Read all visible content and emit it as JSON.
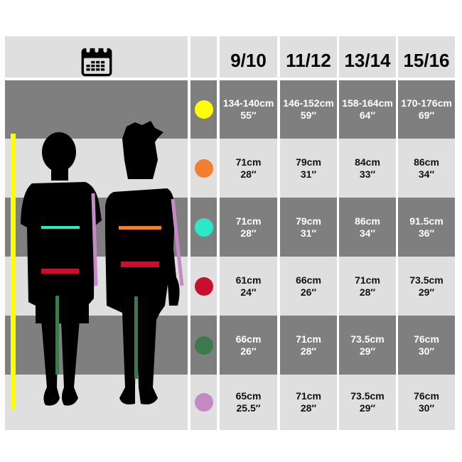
{
  "header": {
    "icon": "calendar-icon",
    "sizes": [
      "9/10",
      "11/12",
      "13/14",
      "15/16"
    ]
  },
  "chart_data": {
    "type": "table",
    "columns": [
      "9/10",
      "11/12",
      "13/14",
      "15/16"
    ],
    "rows": [
      {
        "color": "#ffff00",
        "cells": [
          [
            "134-140cm",
            "55″"
          ],
          [
            "146-152cm",
            "59″"
          ],
          [
            "158-164cm",
            "64″"
          ],
          [
            "170-176cm",
            "69″"
          ]
        ]
      },
      {
        "color": "#f28030",
        "cells": [
          [
            "71cm",
            "28″"
          ],
          [
            "79cm",
            "31″"
          ],
          [
            "84cm",
            "33″"
          ],
          [
            "86cm",
            "34″"
          ]
        ]
      },
      {
        "color": "#2de8c8",
        "cells": [
          [
            "71cm",
            "28″"
          ],
          [
            "79cm",
            "31″"
          ],
          [
            "86cm",
            "34″"
          ],
          [
            "91.5cm",
            "36″"
          ]
        ]
      },
      {
        "color": "#c8102e",
        "cells": [
          [
            "61cm",
            "24″"
          ],
          [
            "66cm",
            "26″"
          ],
          [
            "71cm",
            "28″"
          ],
          [
            "73.5cm",
            "29″"
          ]
        ]
      },
      {
        "color": "#3a7a4e",
        "cells": [
          [
            "66cm",
            "26″"
          ],
          [
            "71cm",
            "28″"
          ],
          [
            "73.5cm",
            "29″"
          ],
          [
            "76cm",
            "30″"
          ]
        ]
      },
      {
        "color": "#c48ac6",
        "cells": [
          [
            "65cm",
            "25.5″"
          ],
          [
            "71cm",
            "28″"
          ],
          [
            "73.5cm",
            "29″"
          ],
          [
            "76cm",
            "30″"
          ]
        ]
      }
    ]
  }
}
